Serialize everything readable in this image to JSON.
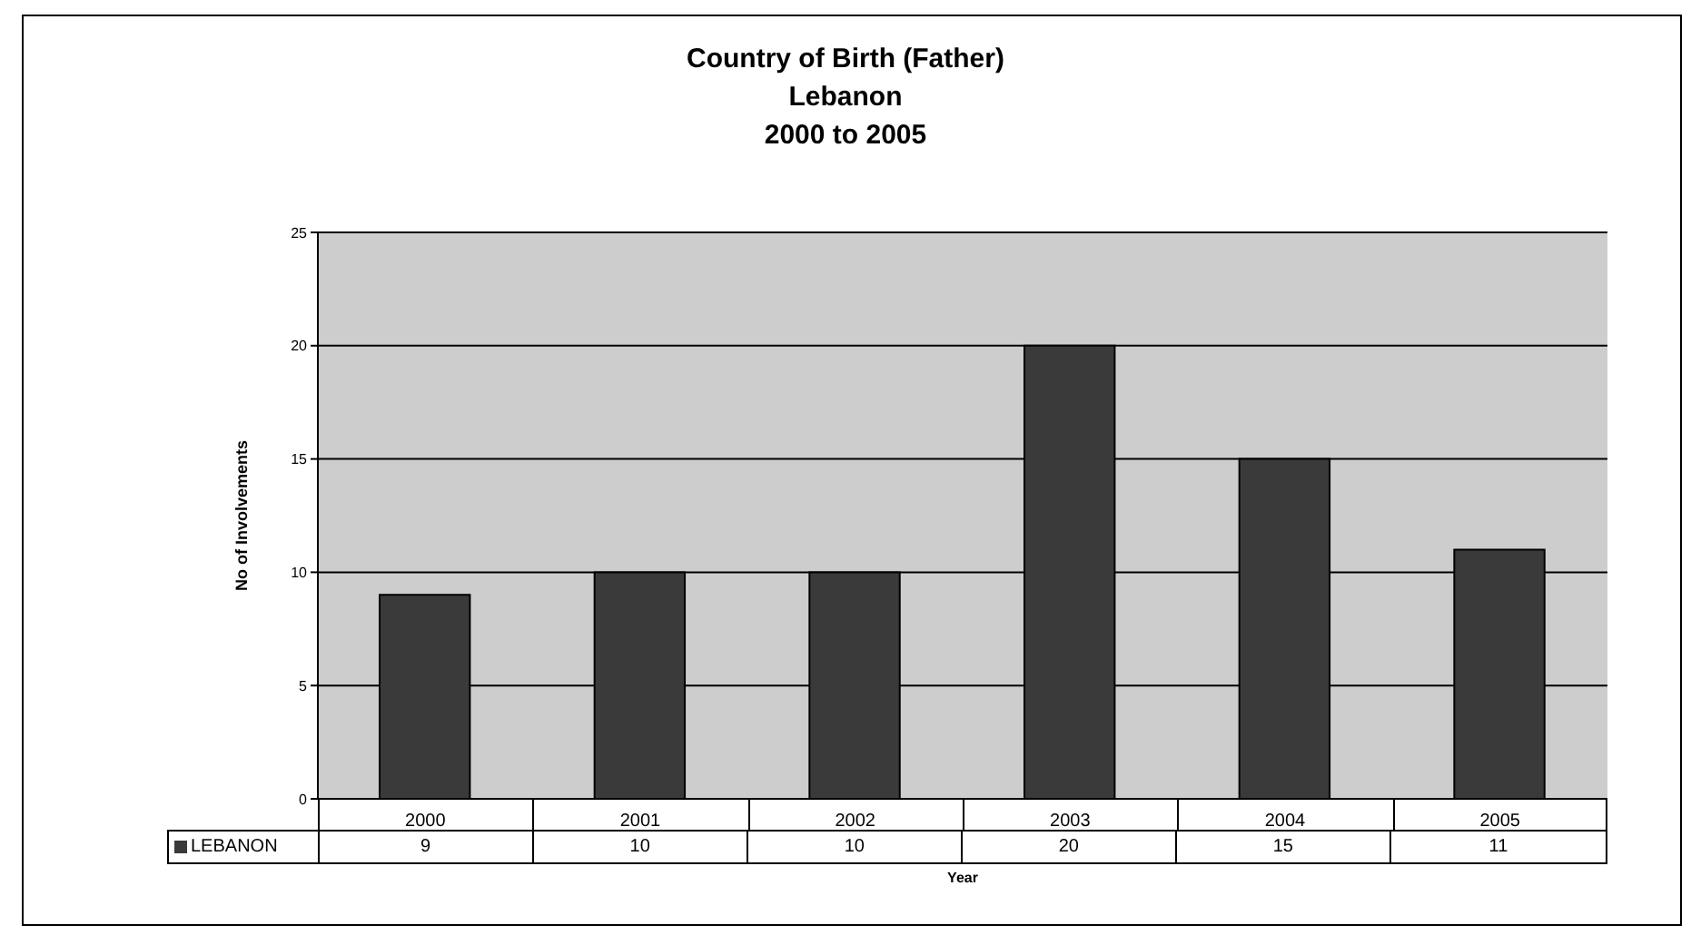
{
  "chart_data": {
    "type": "bar",
    "title": "Country of Birth (Father)\nLebanon\n2000 to 2005",
    "xlabel": "Year",
    "ylabel": "No of Involvements",
    "categories": [
      "2000",
      "2001",
      "2002",
      "2003",
      "2004",
      "2005"
    ],
    "series": [
      {
        "name": "LEBANON",
        "color": "#3a3a3a",
        "values": [
          9,
          10,
          10,
          20,
          15,
          11
        ]
      }
    ],
    "ylim": [
      0,
      25
    ],
    "yticks": [
      0,
      5,
      10,
      15,
      20,
      25
    ],
    "grid": "y",
    "data_labels": true
  }
}
